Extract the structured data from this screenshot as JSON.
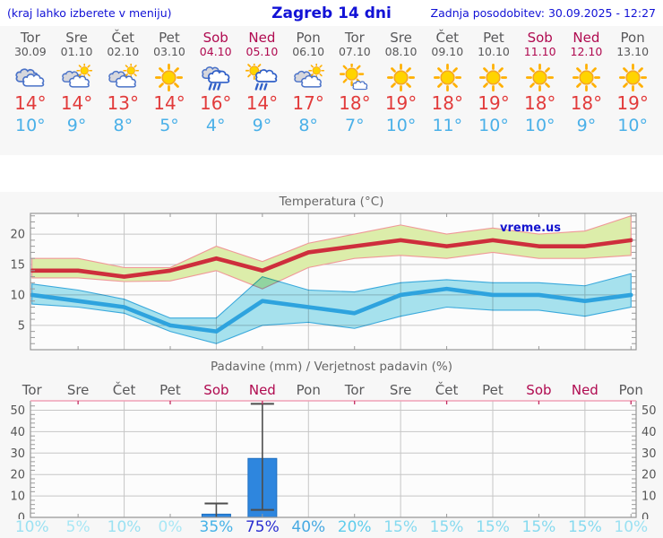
{
  "header": {
    "left_note": "(kraj lahko izberete v meniju)",
    "title": "Zagreb 14 dni",
    "updated": "Zadnja posodobitev: 30.09.2025 - 12:27"
  },
  "colors": {
    "header_text": "#1212d6",
    "weekday": "#58585a",
    "weekend": "#b00a50",
    "max_temp": "#e23b3b",
    "min_temp": "#4ab0e8",
    "panel_bg": "#f7f7f7",
    "chart_bg": "#fcfcfc",
    "max_line": "#ce2e3c",
    "max_band": "#dcedaa",
    "min_line": "#2ea3de",
    "min_band": "#a8e4f0",
    "bar": "#2e86de",
    "precip_top_axis": "#f0a0b6"
  },
  "days": [
    {
      "name": "Tor",
      "date": "30.09",
      "weekend": false,
      "icon": "cloudy",
      "tmax": "14°",
      "tmin": "10°",
      "precip_prob": "10%",
      "prob_color": "#9be1f2"
    },
    {
      "name": "Sre",
      "date": "01.10",
      "weekend": false,
      "icon": "partly",
      "tmax": "14°",
      "tmin": "9°",
      "precip_prob": "5%",
      "prob_color": "#a8e7f5"
    },
    {
      "name": "Čet",
      "date": "02.10",
      "weekend": false,
      "icon": "partly",
      "tmax": "13°",
      "tmin": "8°",
      "precip_prob": "10%",
      "prob_color": "#9be1f2"
    },
    {
      "name": "Pet",
      "date": "03.10",
      "weekend": false,
      "icon": "sunny",
      "tmax": "14°",
      "tmin": "5°",
      "precip_prob": "0%",
      "prob_color": "#a8e7f5"
    },
    {
      "name": "Sob",
      "date": "04.10",
      "weekend": true,
      "icon": "rain",
      "tmax": "16°",
      "tmin": "4°",
      "precip_prob": "35%",
      "prob_color": "#46b2e7"
    },
    {
      "name": "Ned",
      "date": "05.10",
      "weekend": true,
      "icon": "sunrain",
      "tmax": "14°",
      "tmin": "9°",
      "precip_prob": "75%",
      "prob_color": "#2b2ed0"
    },
    {
      "name": "Pon",
      "date": "06.10",
      "weekend": false,
      "icon": "partly",
      "tmax": "17°",
      "tmin": "8°",
      "precip_prob": "40%",
      "prob_color": "#46a9e2"
    },
    {
      "name": "Tor",
      "date": "07.10",
      "weekend": false,
      "icon": "mostlysunny",
      "tmax": "18°",
      "tmin": "7°",
      "precip_prob": "20%",
      "prob_color": "#5fcdec"
    },
    {
      "name": "Sre",
      "date": "08.10",
      "weekend": false,
      "icon": "sunny",
      "tmax": "19°",
      "tmin": "10°",
      "precip_prob": "15%",
      "prob_color": "#86daef"
    },
    {
      "name": "Čet",
      "date": "09.10",
      "weekend": false,
      "icon": "sunny",
      "tmax": "18°",
      "tmin": "11°",
      "precip_prob": "15%",
      "prob_color": "#86daef"
    },
    {
      "name": "Pet",
      "date": "10.10",
      "weekend": false,
      "icon": "sunny",
      "tmax": "19°",
      "tmin": "10°",
      "precip_prob": "15%",
      "prob_color": "#86daef"
    },
    {
      "name": "Sob",
      "date": "11.10",
      "weekend": true,
      "icon": "sunny",
      "tmax": "18°",
      "tmin": "10°",
      "precip_prob": "15%",
      "prob_color": "#86daef"
    },
    {
      "name": "Ned",
      "date": "12.10",
      "weekend": true,
      "icon": "sunny",
      "tmax": "18°",
      "tmin": "9°",
      "precip_prob": "15%",
      "prob_color": "#86daef"
    },
    {
      "name": "Pon",
      "date": "13.10",
      "weekend": false,
      "icon": "sunny",
      "tmax": "19°",
      "tmin": "10°",
      "precip_prob": "10%",
      "prob_color": "#9be1f2"
    }
  ],
  "chart_data": [
    {
      "type": "line",
      "title": "Temperatura (°C)",
      "watermark": "vreme.us",
      "categories": [
        "Tor",
        "Sre",
        "Čet",
        "Pet",
        "Sob",
        "Ned",
        "Pon",
        "Tor",
        "Sre",
        "Čet",
        "Pet",
        "Sob",
        "Ned",
        "Pon"
      ],
      "ylim": [
        1,
        23.4
      ],
      "yticks": [
        5,
        10,
        15,
        20
      ],
      "grid": true,
      "series": [
        {
          "name": "tmax",
          "color": "#ce2e3c",
          "values": [
            14,
            14,
            13,
            14,
            16,
            14,
            17,
            18,
            19,
            18,
            19,
            18,
            18,
            19
          ]
        },
        {
          "name": "tmin",
          "color": "#2ea3de",
          "values": [
            10,
            9,
            8,
            5,
            4,
            9,
            8,
            7,
            10,
            11,
            10,
            10,
            9,
            10
          ]
        },
        {
          "name": "tmax_band_upper",
          "values": [
            16,
            16,
            14.5,
            14.5,
            18,
            15.5,
            18.5,
            20,
            21.5,
            20,
            21,
            20,
            20.5,
            23
          ]
        },
        {
          "name": "tmax_band_lower",
          "values": [
            12.8,
            12.8,
            12.2,
            12.3,
            14,
            11,
            14.5,
            16,
            16.5,
            16,
            17,
            16,
            16,
            16.5
          ]
        },
        {
          "name": "tmin_band_upper",
          "values": [
            11.8,
            10.8,
            9.3,
            6.2,
            6.2,
            13,
            10.8,
            10.5,
            12,
            12.5,
            12,
            12,
            11.5,
            13.5
          ]
        },
        {
          "name": "tmin_band_lower",
          "values": [
            8.5,
            8,
            7,
            4,
            2,
            5,
            5.5,
            4.5,
            6.5,
            8,
            7.5,
            7.5,
            6.5,
            8
          ]
        }
      ]
    },
    {
      "type": "bar",
      "title": "Padavine (mm) / Verjetnost padavin (%)",
      "categories": [
        "Tor",
        "Sre",
        "Čet",
        "Pet",
        "Sob",
        "Ned",
        "Pon",
        "Tor",
        "Sre",
        "Čet",
        "Pet",
        "Sob",
        "Ned",
        "Pon"
      ],
      "ylim": [
        0,
        54.4
      ],
      "yticks": [
        0,
        10,
        20,
        30,
        40,
        50
      ],
      "grid": true,
      "values": [
        0,
        0,
        0,
        0,
        1.5,
        27.5,
        0,
        0,
        0,
        0,
        0,
        0,
        0,
        0
      ],
      "bars": [
        {
          "day": 4,
          "value": 1.5,
          "whisker_low": 0,
          "whisker_high": 6.5
        },
        {
          "day": 5,
          "value": 27.5,
          "whisker_low": 3.5,
          "whisker_high": 53
        }
      ],
      "probabilities": [
        "10%",
        "5%",
        "10%",
        "0%",
        "35%",
        "75%",
        "40%",
        "20%",
        "15%",
        "15%",
        "15%",
        "15%",
        "15%",
        "10%"
      ]
    }
  ]
}
